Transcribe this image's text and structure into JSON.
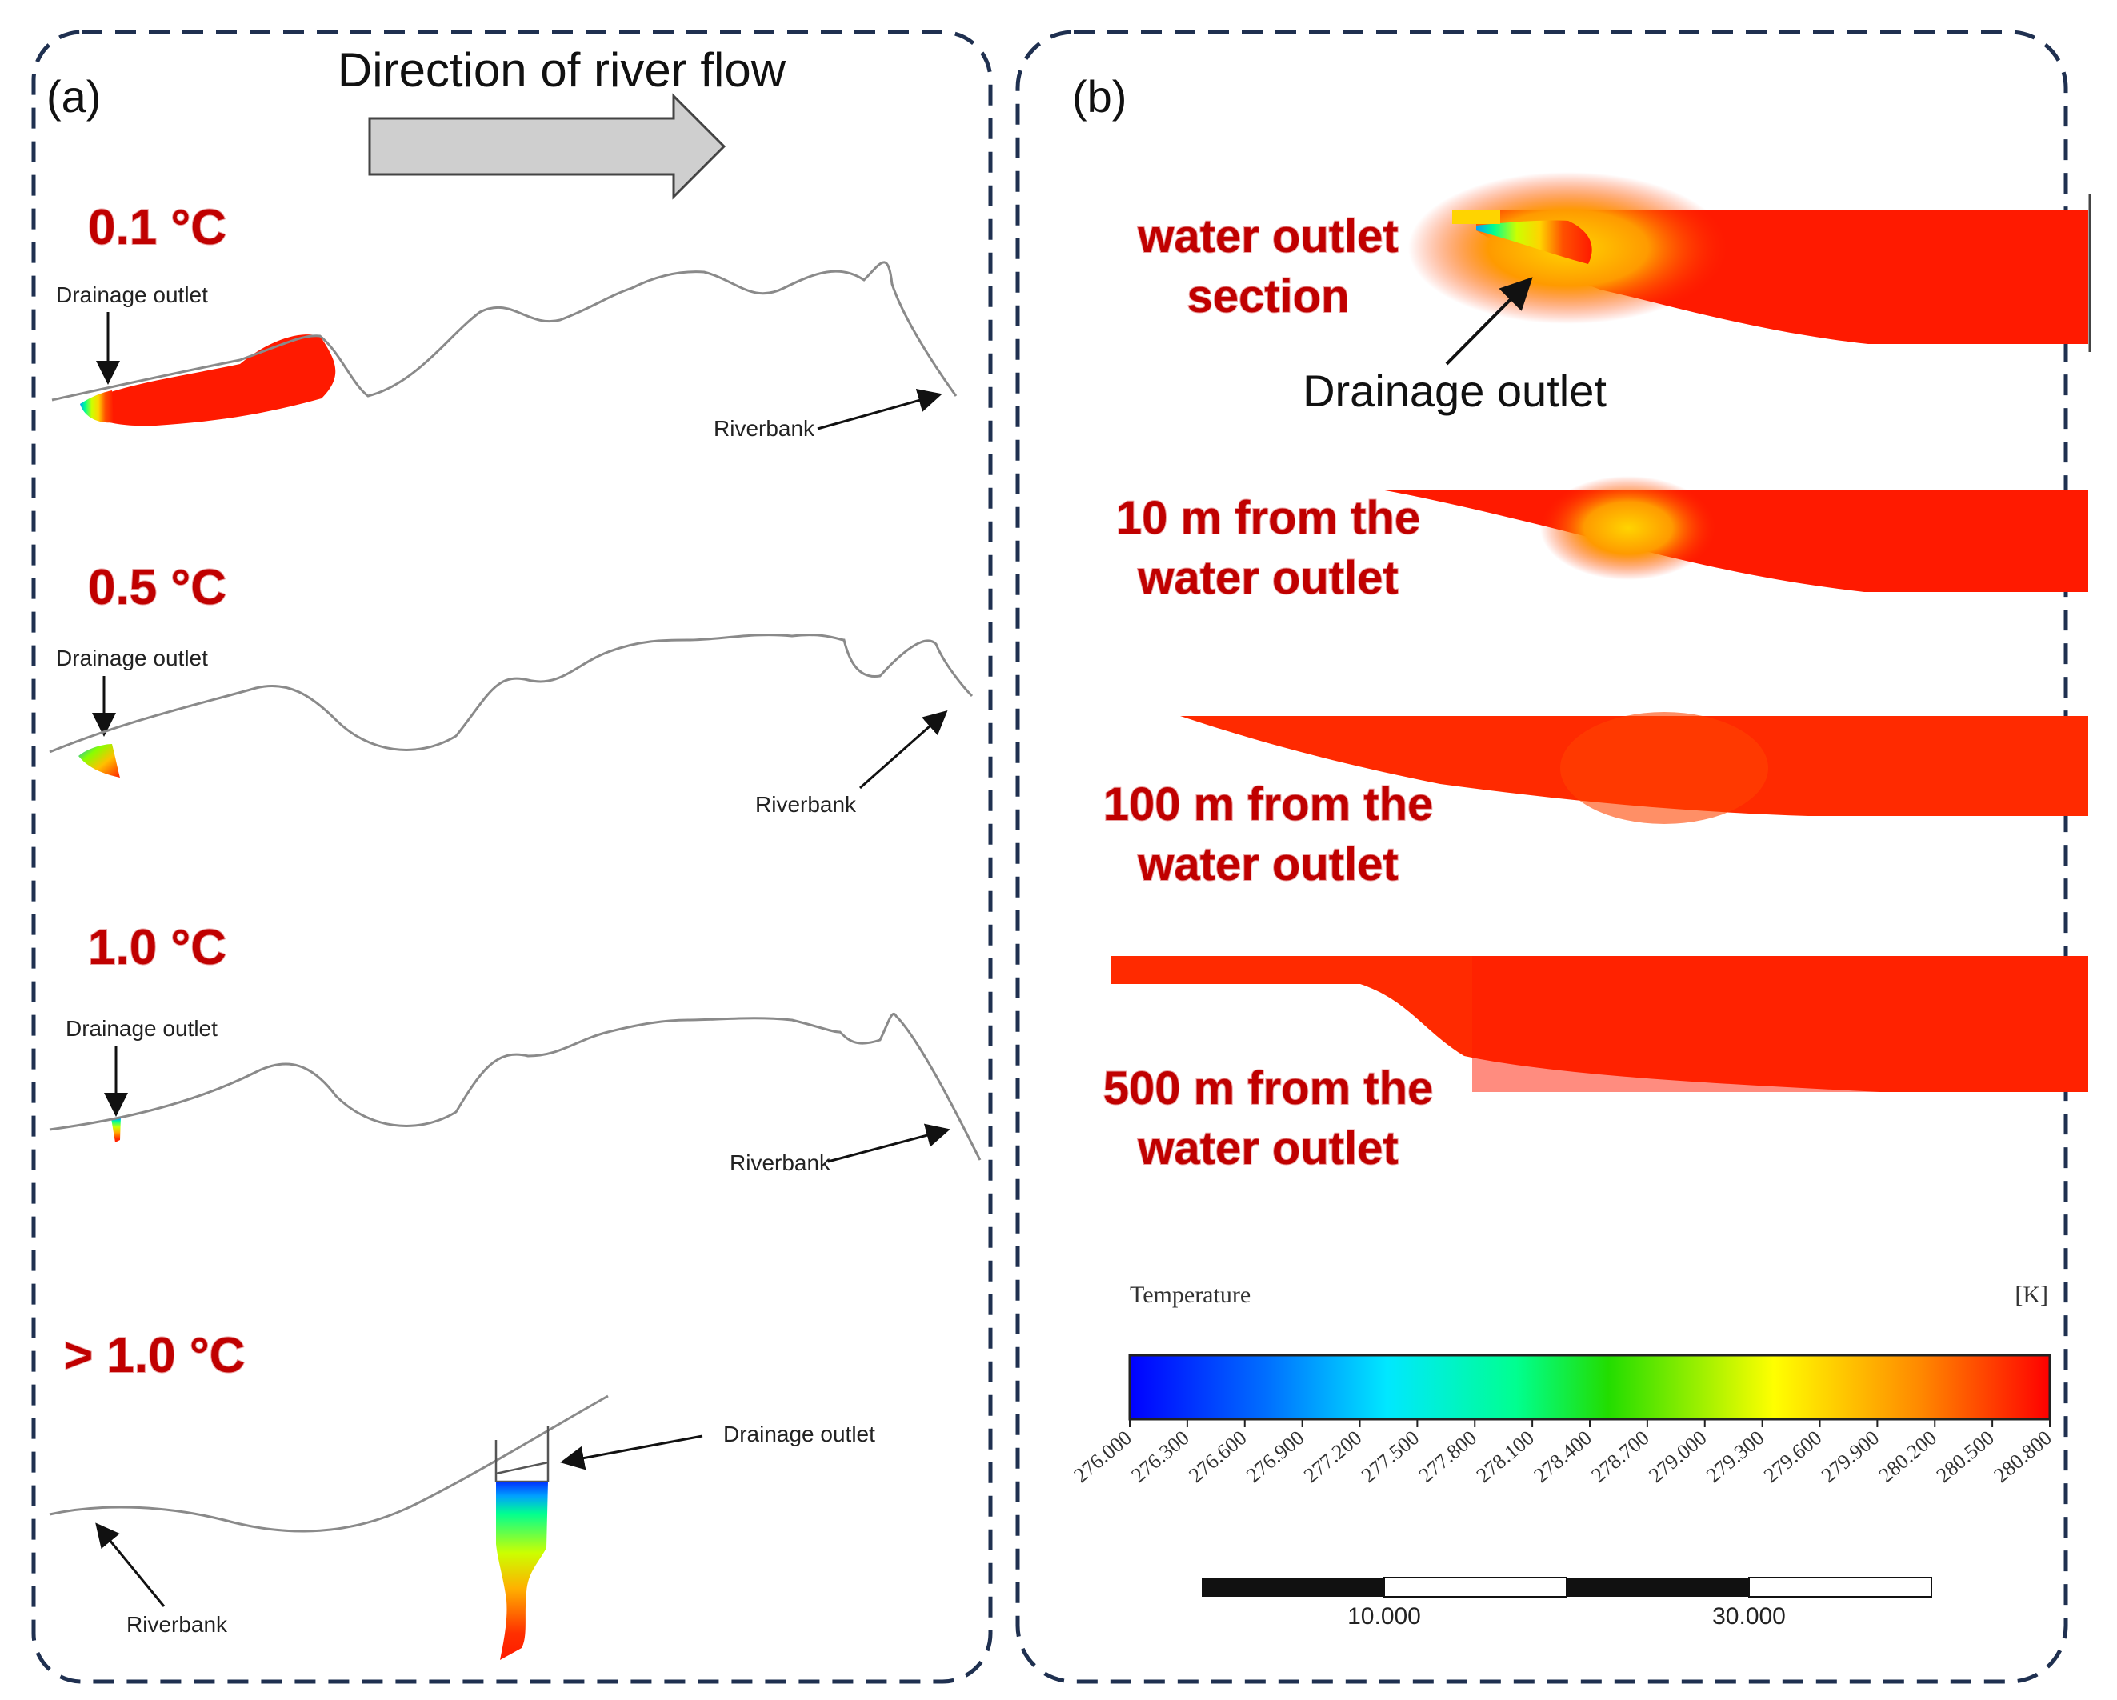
{
  "panel_a": {
    "label": "(a)",
    "flow_title": "Direction of river flow",
    "scenarios": [
      {
        "temp": "0.1 °C",
        "outlet_label": "Drainage outlet",
        "bank_label": "Riverbank"
      },
      {
        "temp": "0.5 °C",
        "outlet_label": "Drainage outlet",
        "bank_label": "Riverbank"
      },
      {
        "temp": "1.0 °C",
        "outlet_label": "Drainage outlet",
        "bank_label": "Riverbank"
      },
      {
        "temp": "> 1.0 °C",
        "outlet_label": "Drainage outlet",
        "bank_label": "Riverbank"
      }
    ]
  },
  "panel_b": {
    "label": "(b)",
    "sections": [
      {
        "line1": "water outlet",
        "line2": "section"
      },
      {
        "line1": "10 m from the",
        "line2": "water outlet"
      },
      {
        "line1": "100 m from the",
        "line2": "water outlet"
      },
      {
        "line1": "500 m from the",
        "line2": "water outlet"
      }
    ],
    "outlet_label": "Drainage outlet"
  },
  "legend": {
    "title": "Temperature",
    "unit": "[K]",
    "ticks": [
      "276.000",
      "276.300",
      "276.600",
      "276.900",
      "277.200",
      "277.500",
      "277.800",
      "278.100",
      "278.400",
      "278.700",
      "279.000",
      "279.300",
      "279.600",
      "279.900",
      "280.200",
      "280.500",
      "280.800"
    ],
    "colors": [
      "#0000ff",
      "#0070ff",
      "#00e8ff",
      "#00ff90",
      "#22dd00",
      "#ffff00",
      "#ff8800",
      "#ff0000"
    ],
    "plume_red": "#ff1a00"
  },
  "scale_bar": {
    "labels": [
      "10.000",
      "30.000"
    ]
  }
}
